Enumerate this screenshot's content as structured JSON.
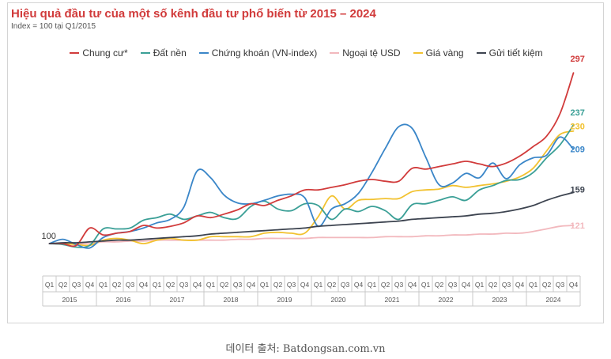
{
  "chart_data": {
    "type": "line",
    "title": "Hiệu quả đầu tư của một số kênh đầu tư phổ biến từ 2015 – 2024",
    "subtitle": "Index = 100 tại Q1/2015",
    "quarters": [
      "Q1",
      "Q2",
      "Q3",
      "Q4"
    ],
    "years": [
      "2015",
      "2016",
      "2017",
      "2018",
      "2019",
      "2020",
      "2021",
      "2022",
      "2023",
      "2024"
    ],
    "x": [
      "Q1/2015",
      "Q2/2015",
      "Q3/2015",
      "Q4/2015",
      "Q1/2016",
      "Q2/2016",
      "Q3/2016",
      "Q4/2016",
      "Q1/2017",
      "Q2/2017",
      "Q3/2017",
      "Q4/2017",
      "Q1/2018",
      "Q2/2018",
      "Q3/2018",
      "Q4/2018",
      "Q1/2019",
      "Q2/2019",
      "Q3/2019",
      "Q4/2019",
      "Q1/2020",
      "Q2/2020",
      "Q3/2020",
      "Q4/2020",
      "Q1/2021",
      "Q2/2021",
      "Q3/2021",
      "Q4/2021",
      "Q1/2022",
      "Q2/2022",
      "Q3/2022",
      "Q4/2022",
      "Q1/2023",
      "Q2/2023",
      "Q3/2023",
      "Q4/2023",
      "Q1/2024",
      "Q2/2024",
      "Q3/2024",
      "Q4/2024"
    ],
    "ylim": [
      80,
      310
    ],
    "start_label": "100",
    "series": [
      {
        "name": "Chung cư*",
        "color": "#d13b3b",
        "end_label": "297",
        "values": [
          100,
          100,
          98,
          118,
          110,
          112,
          114,
          121,
          118,
          120,
          124,
          132,
          130,
          134,
          139,
          146,
          144,
          150,
          155,
          162,
          162,
          165,
          168,
          172,
          174,
          172,
          172,
          187,
          186,
          189,
          192,
          195,
          192,
          189,
          193,
          201,
          212,
          224,
          250,
          297
        ]
      },
      {
        "name": "Đất nền",
        "color": "#3a9f96",
        "end_label": "237",
        "values": [
          100,
          99,
          96,
          98,
          117,
          117,
          118,
          127,
          130,
          134,
          128,
          132,
          136,
          130,
          129,
          143,
          149,
          140,
          138,
          146,
          144,
          128,
          140,
          137,
          143,
          138,
          128,
          145,
          146,
          150,
          154,
          150,
          162,
          167,
          173,
          174,
          182,
          199,
          214,
          237
        ]
      },
      {
        "name": "Chứng khoán (VN-index)",
        "color": "#3a86c8",
        "end_label": "209",
        "values": [
          100,
          105,
          99,
          95,
          107,
          112,
          114,
          118,
          124,
          128,
          142,
          184,
          176,
          156,
          147,
          146,
          150,
          155,
          157,
          153,
          120,
          140,
          146,
          158,
          182,
          210,
          235,
          233,
          200,
          168,
          170,
          181,
          176,
          193,
          175,
          191,
          199,
          202,
          223,
          209
        ]
      },
      {
        "name": "Ngoại tệ USD",
        "color": "#f2b8bd",
        "end_label": "121",
        "values": [
          100,
          100,
          100,
          100,
          102,
          102,
          103,
          103,
          104,
          104,
          104,
          104,
          104,
          104,
          105,
          105,
          106,
          106,
          106,
          106,
          107,
          107,
          107,
          107,
          107,
          108,
          108,
          108,
          109,
          109,
          110,
          110,
          111,
          111,
          112,
          112,
          114,
          117,
          120,
          121
        ]
      },
      {
        "name": "Giá vàng",
        "color": "#f2c230",
        "end_label": "230",
        "values": [
          100,
          100,
          99,
          98,
          104,
          106,
          104,
          100,
          104,
          106,
          104,
          104,
          108,
          108,
          108,
          108,
          112,
          113,
          112,
          112,
          131,
          155,
          140,
          150,
          151,
          152,
          152,
          160,
          162,
          163,
          167,
          165,
          167,
          169,
          172,
          177,
          187,
          207,
          226,
          230
        ]
      },
      {
        "name": "Gửi tiết kiệm",
        "color": "#3d4450",
        "end_label": "159",
        "values": [
          100,
          101,
          101,
          102,
          103,
          104,
          104,
          105,
          106,
          107,
          108,
          109,
          111,
          112,
          113,
          114,
          115,
          116,
          117,
          118,
          120,
          121,
          122,
          123,
          124,
          125,
          126,
          128,
          129,
          130,
          131,
          132,
          134,
          135,
          137,
          140,
          144,
          150,
          155,
          159
        ]
      }
    ]
  },
  "caption": "데이터 출처: Batdongsan.com.vn"
}
